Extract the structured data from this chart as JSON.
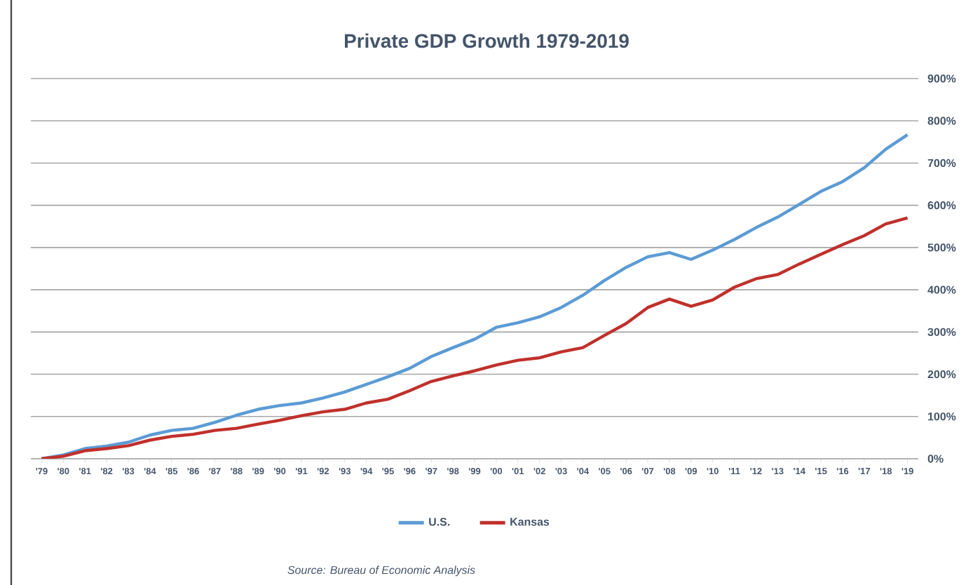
{
  "chart_data": {
    "type": "line",
    "title": "Private GDP Growth   1979-2019",
    "categories": [
      "'79",
      "'80",
      "'81",
      "'82",
      "'83",
      "'84",
      "'85",
      "'86",
      "'87",
      "'88",
      "'89",
      "'90",
      "'91",
      "'92",
      "'93",
      "'94",
      "'95",
      "'96",
      "'97",
      "'98",
      "'99",
      "'00",
      "'01",
      "'02",
      "'03",
      "'04",
      "'05",
      "'06",
      "'07",
      "'08",
      "'09",
      "'10",
      "'11",
      "'12",
      "'13",
      "'14",
      "'15",
      "'16",
      "'17",
      "'18",
      "'19"
    ],
    "series": [
      {
        "name": "U.S.",
        "color": "#5b9bd5",
        "values": [
          0,
          9,
          24,
          30,
          39,
          56,
          67,
          72,
          86,
          103,
          117,
          126,
          132,
          144,
          158,
          176,
          194,
          214,
          242,
          263,
          283,
          311,
          322,
          336,
          358,
          387,
          422,
          453,
          478,
          488,
          472,
          494,
          519,
          547,
          572,
          602,
          633,
          656,
          689,
          733,
          767
        ]
      },
      {
        "name": "Kansas",
        "color": "#c0302b",
        "values": [
          0,
          6,
          19,
          24,
          31,
          44,
          53,
          58,
          67,
          72,
          82,
          91,
          102,
          111,
          117,
          132,
          141,
          161,
          183,
          196,
          208,
          222,
          233,
          239,
          253,
          263,
          292,
          320,
          358,
          378,
          361,
          376,
          406,
          426,
          436,
          461,
          484,
          507,
          528,
          556,
          570
        ]
      }
    ],
    "ylim": [
      0,
      900
    ],
    "yticks": [
      {
        "value": 0,
        "label": "0%"
      },
      {
        "value": 100,
        "label": "100%"
      },
      {
        "value": 200,
        "label": "200%"
      },
      {
        "value": 300,
        "label": "300%"
      },
      {
        "value": 400,
        "label": "400%"
      },
      {
        "value": 500,
        "label": "500%"
      },
      {
        "value": 600,
        "label": "600%"
      },
      {
        "value": 700,
        "label": "700%"
      },
      {
        "value": 800,
        "label": "800%"
      },
      {
        "value": 900,
        "label": "900%"
      }
    ],
    "grid": "y",
    "legend": "bottom",
    "annotations": [
      "Source: Bureau of Economic Analysis"
    ]
  }
}
